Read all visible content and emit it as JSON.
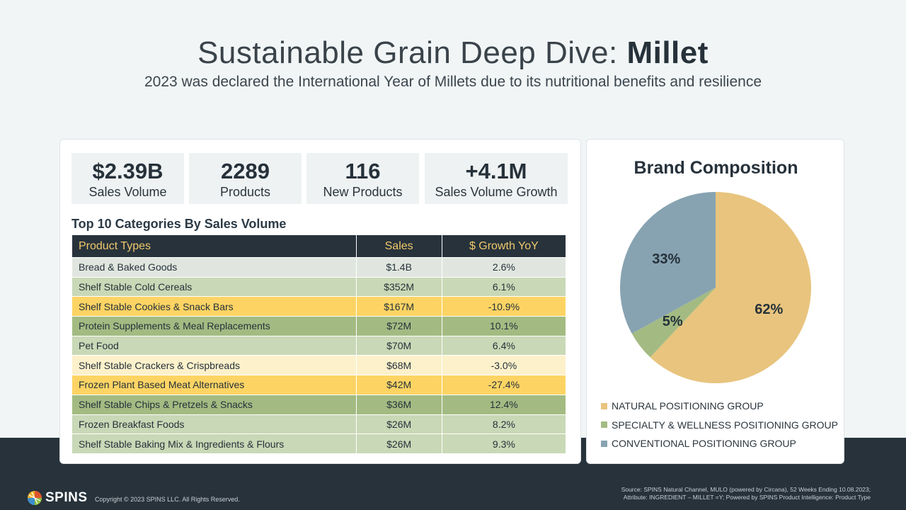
{
  "header": {
    "title_light": "Sustainable Grain Deep Dive: ",
    "title_bold": "Millet",
    "subtitle": "2023 was declared the International  Year of Millets due to its nutritional benefits and resilience"
  },
  "kpis": [
    {
      "value": "$2.39B",
      "label": "Sales Volume"
    },
    {
      "value": "2289",
      "label": "Products"
    },
    {
      "value": "116",
      "label": "New Products"
    },
    {
      "value": "+4.1M",
      "label": "Sales Volume Growth"
    }
  ],
  "table": {
    "title": "Top 10 Categories By Sales Volume",
    "headers": [
      "Product Types",
      "Sales",
      "$ Growth YoY"
    ],
    "rows": [
      {
        "type": "Bread & Baked Goods",
        "sales": "$1.4B",
        "growth": "2.6%",
        "color": "#e0e6df"
      },
      {
        "type": "Shelf Stable Cold Cereals",
        "sales": "$352M",
        "growth": "6.1%",
        "color": "#c9d8b6"
      },
      {
        "type": "Shelf Stable Cookies & Snack Bars",
        "sales": "$167M",
        "growth": "-10.9%",
        "color": "#fdd464"
      },
      {
        "type": "Protein Supplements & Meal Replacements",
        "sales": "$72M",
        "growth": "10.1%",
        "color": "#a3bb82"
      },
      {
        "type": "Pet Food",
        "sales": "$70M",
        "growth": "6.4%",
        "color": "#c9d8b6"
      },
      {
        "type": "Shelf Stable Crackers & Crispbreads",
        "sales": "$68M",
        "growth": "-3.0%",
        "color": "#fdf1cb"
      },
      {
        "type": "Frozen Plant Based Meat Alternatives",
        "sales": "$42M",
        "growth": "-27.4%",
        "color": "#fdd464"
      },
      {
        "type": "Shelf Stable Chips & Pretzels & Snacks",
        "sales": "$36M",
        "growth": "12.4%",
        "color": "#a3bb82"
      },
      {
        "type": "Frozen Breakfast Foods",
        "sales": "$26M",
        "growth": "8.2%",
        "color": "#c9d8b6"
      },
      {
        "type": "Shelf Stable Baking Mix & Ingredients & Flours",
        "sales": "$26M",
        "growth": "9.3%",
        "color": "#c9d8b6"
      }
    ]
  },
  "chart_data": {
    "type": "pie",
    "title": "Brand Composition",
    "categories": [
      "NATURAL POSITIONING GROUP",
      "SPECIALTY & WELLNESS POSITIONING GROUP",
      "CONVENTIONAL POSITIONING GROUP"
    ],
    "values": [
      62,
      5,
      33
    ],
    "labels": [
      "62%",
      "5%",
      "33%"
    ],
    "colors": [
      "#e8c47e",
      "#a3bb82",
      "#87a3b1"
    ],
    "legend_position": "bottom"
  },
  "footer": {
    "logo_text": "SPINS",
    "copyright": "Copyright  © 2023  SPINS LLC. All Rights Reserved.",
    "source_line1": "Source: SPINS Natural Channel, MULO (powered by Circana), 52 Weeks Ending  10.08.2023;",
    "source_line2": "Attribute: INGREDIENT – MILLET =Y; Powered by SPINS Product Intelligence: Product Type"
  }
}
